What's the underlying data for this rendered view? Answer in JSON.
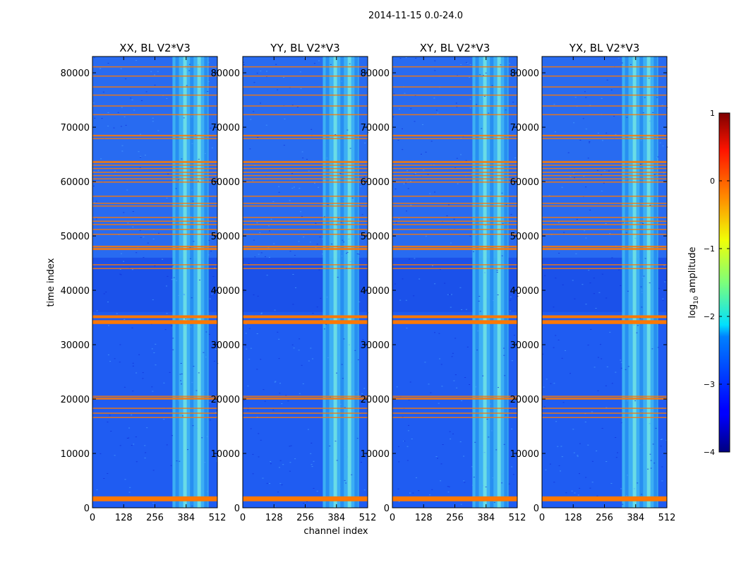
{
  "chart_data": {
    "type": "heatmap",
    "suptitle": "2014-11-15 0.0-24.0",
    "xlabel": "channel index",
    "ylabel": "time index",
    "xlim": [
      0,
      512
    ],
    "ylim": [
      0,
      83000
    ],
    "xticks": [
      0,
      128,
      256,
      384,
      512
    ],
    "yticks": [
      0,
      10000,
      20000,
      30000,
      40000,
      50000,
      60000,
      70000,
      80000
    ],
    "panels": [
      {
        "title": "XX, BL V2*V3",
        "name": "xx"
      },
      {
        "title": "YY, BL V2*V3",
        "name": "yy"
      },
      {
        "title": "XY, BL V2*V3",
        "name": "xy"
      },
      {
        "title": "YX, BL V2*V3",
        "name": "yx"
      }
    ],
    "bright_band_channels": [
      [
        328,
        476
      ]
    ],
    "flagged_rows": [
      {
        "start": 1200,
        "end": 2100,
        "kind": "thick"
      },
      {
        "start": 16500,
        "end": 16700,
        "kind": "thin"
      },
      {
        "start": 17300,
        "end": 17500,
        "kind": "thin"
      },
      {
        "start": 18200,
        "end": 18400,
        "kind": "thin"
      },
      {
        "start": 19900,
        "end": 20300,
        "kind": "thin"
      },
      {
        "start": 20400,
        "end": 20600,
        "kind": "thin"
      },
      {
        "start": 33800,
        "end": 34500,
        "kind": "thick"
      },
      {
        "start": 34900,
        "end": 35400,
        "kind": "thick"
      },
      {
        "start": 43900,
        "end": 44100,
        "kind": "thin"
      },
      {
        "start": 44600,
        "end": 44800,
        "kind": "thin"
      },
      {
        "start": 47400,
        "end": 47800,
        "kind": "thin"
      },
      {
        "start": 47900,
        "end": 48200,
        "kind": "thin"
      },
      {
        "start": 50200,
        "end": 50400,
        "kind": "thin"
      },
      {
        "start": 51100,
        "end": 51300,
        "kind": "thin"
      },
      {
        "start": 52000,
        "end": 52200,
        "kind": "thin"
      },
      {
        "start": 52600,
        "end": 52800,
        "kind": "thin"
      },
      {
        "start": 53300,
        "end": 53500,
        "kind": "thin"
      },
      {
        "start": 55400,
        "end": 55600,
        "kind": "thin"
      },
      {
        "start": 55900,
        "end": 56100,
        "kind": "thin"
      },
      {
        "start": 57200,
        "end": 57400,
        "kind": "thin"
      },
      {
        "start": 59800,
        "end": 60000,
        "kind": "thin"
      },
      {
        "start": 60400,
        "end": 60600,
        "kind": "thin"
      },
      {
        "start": 61000,
        "end": 61200,
        "kind": "thin"
      },
      {
        "start": 61600,
        "end": 61800,
        "kind": "thin"
      },
      {
        "start": 62300,
        "end": 62500,
        "kind": "thin"
      },
      {
        "start": 62900,
        "end": 63100,
        "kind": "thin"
      },
      {
        "start": 63400,
        "end": 63800,
        "kind": "thin"
      },
      {
        "start": 67800,
        "end": 68000,
        "kind": "thin"
      },
      {
        "start": 68300,
        "end": 68600,
        "kind": "thin"
      },
      {
        "start": 72200,
        "end": 72400,
        "kind": "thin"
      },
      {
        "start": 73800,
        "end": 74000,
        "kind": "thin"
      },
      {
        "start": 75800,
        "end": 76000,
        "kind": "thin"
      },
      {
        "start": 77300,
        "end": 77500,
        "kind": "thin"
      },
      {
        "start": 79300,
        "end": 79500,
        "kind": "thin"
      },
      {
        "start": 81000,
        "end": 81200,
        "kind": "thin"
      }
    ],
    "colorbar": {
      "label": "log10 amplitude",
      "label_main": "log",
      "label_sub": "10",
      "label_rest": " amplitude",
      "range": [
        -4,
        1
      ],
      "ticks": [
        "1",
        "0",
        "−1",
        "−2",
        "−3",
        "−4"
      ],
      "colormap": "jet"
    }
  }
}
